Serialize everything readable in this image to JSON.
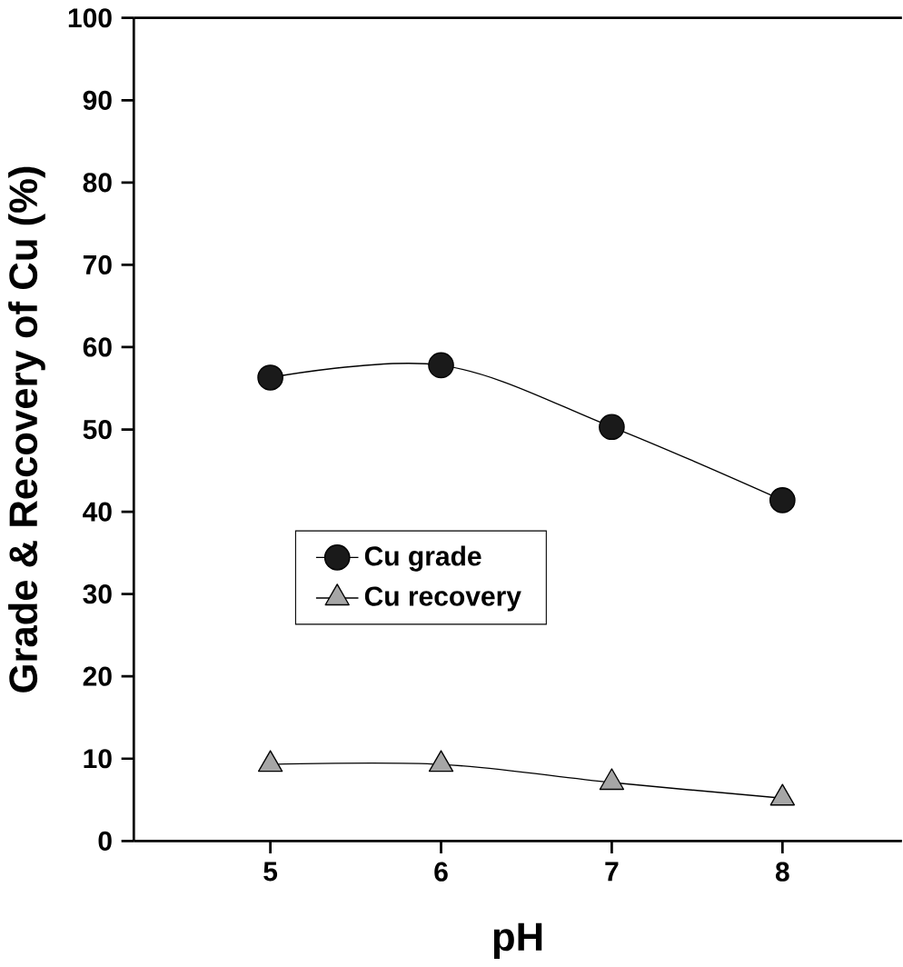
{
  "chart_data": {
    "type": "line",
    "xlabel": "pH",
    "ylabel": "Grade & Recovery of Cu (%)",
    "x": [
      5,
      6,
      7,
      8
    ],
    "series": [
      {
        "name": "Cu grade",
        "color": "#1a1a1a",
        "marker": "circle",
        "values": [
          56.3,
          57.8,
          50.3,
          41.4
        ]
      },
      {
        "name": "Cu recovery",
        "color": "#a6a6a6",
        "marker": "triangle",
        "values": [
          9.3,
          9.3,
          7.1,
          5.2
        ]
      }
    ],
    "xlim": [
      4.2,
      8.7
    ],
    "ylim": [
      0,
      100
    ],
    "xticks": [
      5,
      6,
      7,
      8
    ],
    "yticks": [
      0,
      10,
      20,
      30,
      40,
      50,
      60,
      70,
      80,
      90,
      100
    ],
    "grid": false,
    "legend": "left"
  }
}
